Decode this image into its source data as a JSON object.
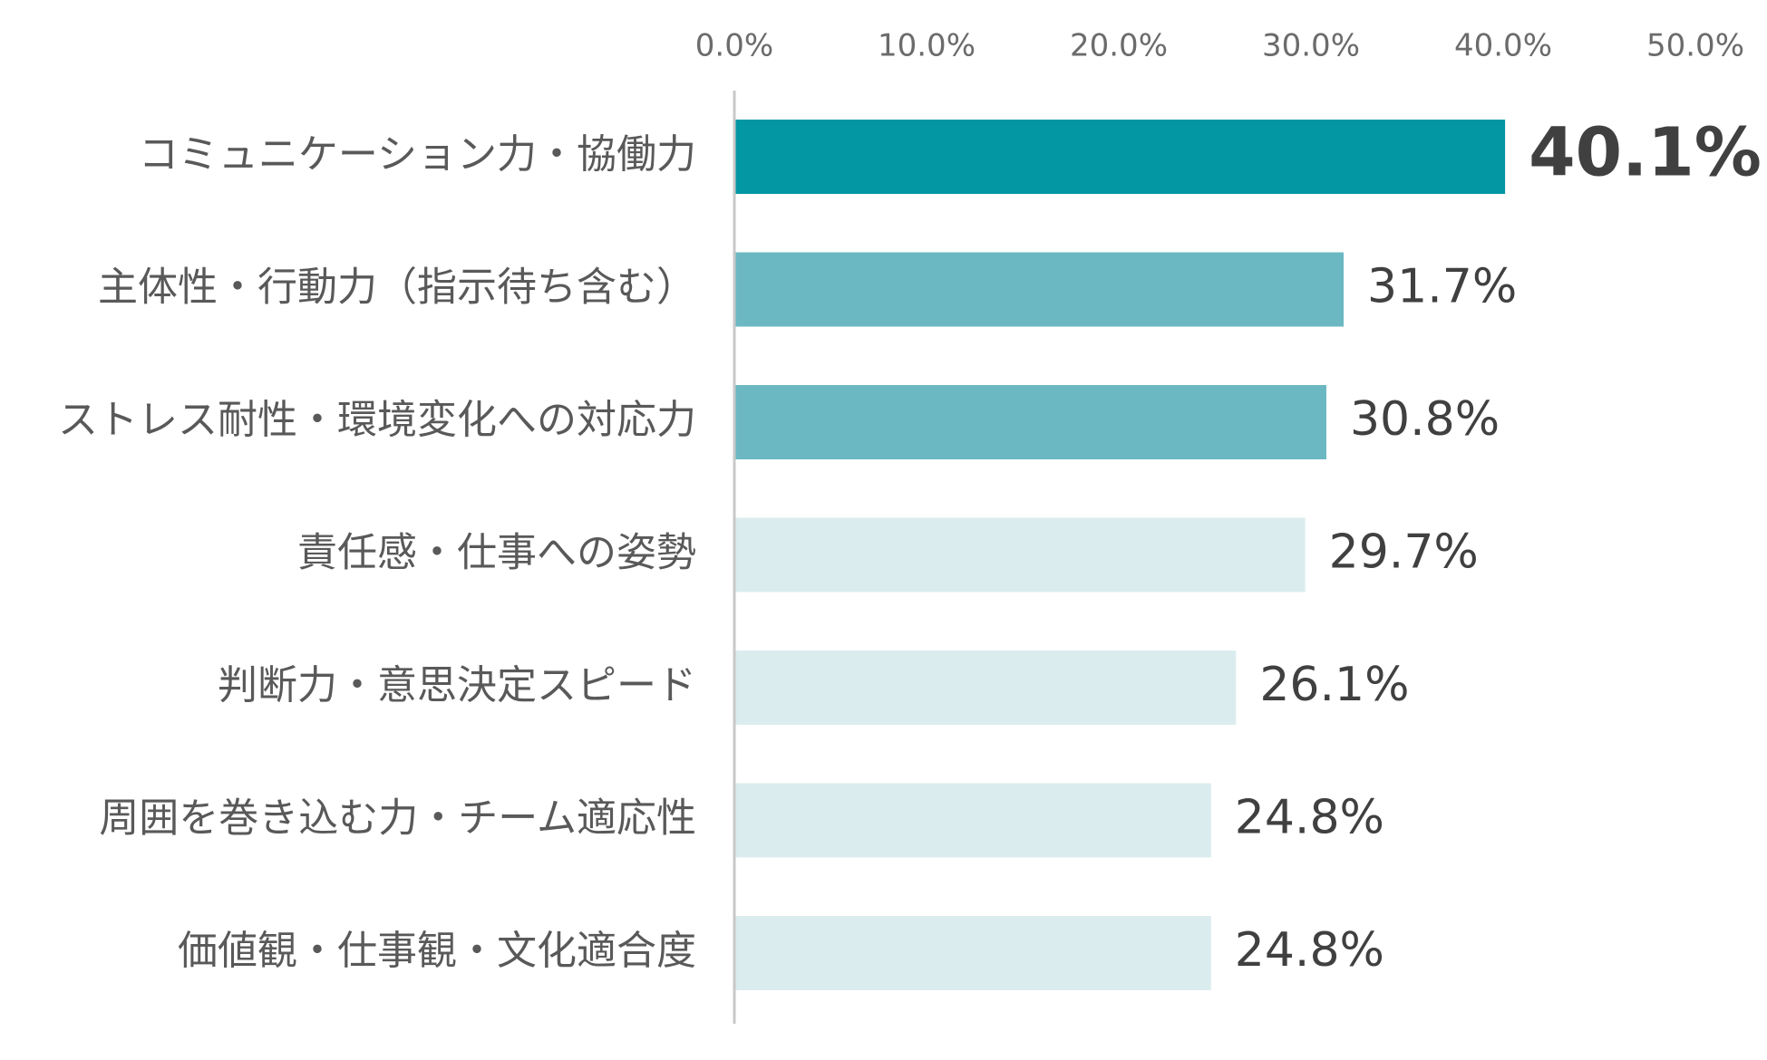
{
  "chart_data": {
    "type": "bar",
    "orientation": "horizontal",
    "title": "",
    "xlabel": "",
    "ylabel": "",
    "xlim": [
      0,
      50
    ],
    "x_ticks": [
      0,
      10,
      20,
      30,
      40,
      50
    ],
    "x_tick_labels": [
      "0.0%",
      "10.0%",
      "20.0%",
      "30.0%",
      "40.0%",
      "50.0%"
    ],
    "x_axis_position": "top",
    "grid": false,
    "legend": "none",
    "categories": [
      "コミュニケーション力・協働力",
      "主体性・行動力（指示待ち含む）",
      "ストレス耐性・環境変化への対応力",
      "責任感・仕事への姿勢",
      "判断力・意思決定スピード",
      "周囲を巻き込む力・チーム適応性",
      "価値観・仕事観・文化適合度"
    ],
    "values": [
      40.1,
      31.7,
      30.8,
      29.7,
      26.1,
      24.8,
      24.8
    ],
    "value_labels": [
      "40.1%",
      "31.7%",
      "30.8%",
      "29.7%",
      "26.1%",
      "24.8%",
      "24.8%"
    ],
    "bar_colors": [
      "#0396a3",
      "#6bb8c2",
      "#6bb8c2",
      "#dbecee",
      "#dbecee",
      "#dbecee",
      "#dbecee"
    ],
    "emphasized_index": 0,
    "axis_line_color": "#c8c8c8"
  }
}
